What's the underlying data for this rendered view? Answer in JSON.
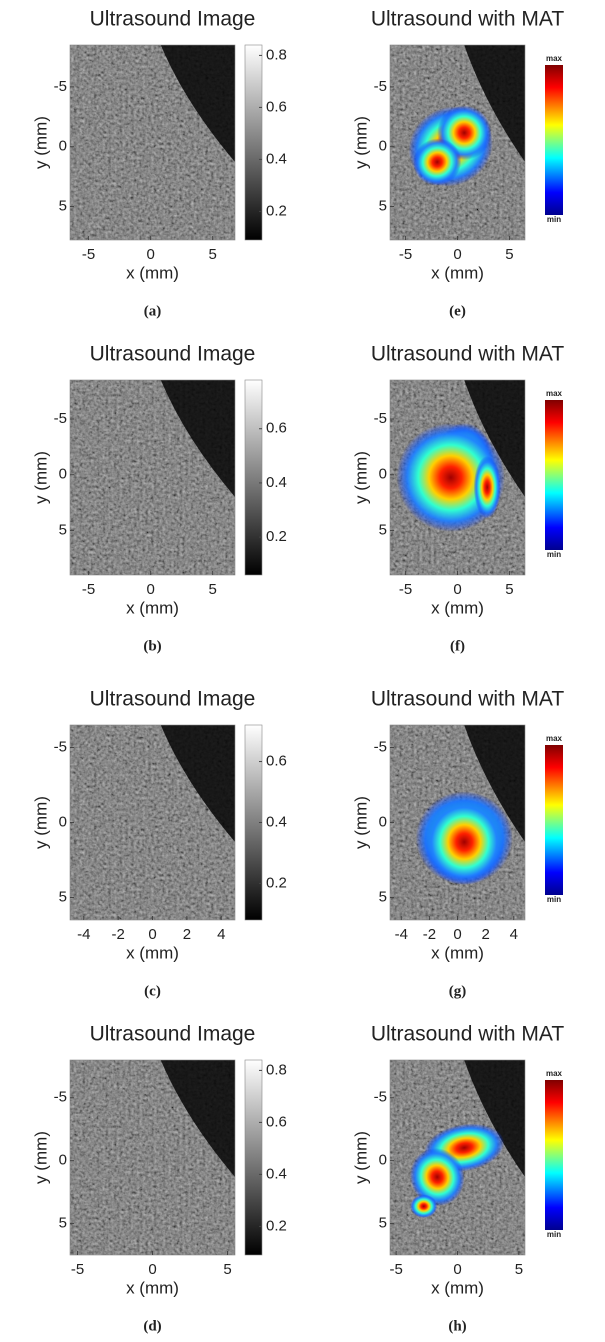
{
  "panels": [
    {
      "title": "Ultrasound Image",
      "xlabel": "x (mm)",
      "ylabel": "y (mm)",
      "xlim": [
        -6.5,
        6.8
      ],
      "ylim": [
        -8.5,
        7.8
      ],
      "xticks": [
        -5,
        0,
        5
      ],
      "yticks": [
        -5,
        0,
        5
      ],
      "clim": [
        0.09,
        0.84
      ],
      "colorbar_ticks": [
        0.8,
        0.6,
        0.4,
        0.2
      ],
      "caption": "(a)"
    },
    {
      "title": "Ultrasound Image",
      "xlabel": "x (mm)",
      "ylabel": "y (mm)",
      "xlim": [
        -6.5,
        6.8
      ],
      "ylim": [
        -8.5,
        9
      ],
      "xticks": [
        -5,
        0,
        5
      ],
      "yticks": [
        -5,
        0,
        5
      ],
      "clim": [
        0.06,
        0.78
      ],
      "colorbar_ticks": [
        0.6,
        0.4,
        0.2
      ],
      "caption": "(b)"
    },
    {
      "title": "Ultrasound Image",
      "xlabel": "x (mm)",
      "ylabel": "y (mm)",
      "xlim": [
        -4.8,
        4.8
      ],
      "ylim": [
        -6.5,
        6.5
      ],
      "xticks": [
        -4,
        -2,
        0,
        2,
        4
      ],
      "yticks": [
        -5,
        0,
        5
      ],
      "clim": [
        0.08,
        0.72
      ],
      "colorbar_ticks": [
        0.6,
        0.4,
        0.2
      ],
      "caption": "(c)"
    },
    {
      "title": "Ultrasound Image",
      "xlabel": "x (mm)",
      "ylabel": "y (mm)",
      "xlim": [
        -5.5,
        5.5
      ],
      "ylim": [
        -8,
        7.5
      ],
      "xticks": [
        -5,
        0,
        5
      ],
      "yticks": [
        -5,
        0,
        5
      ],
      "clim": [
        0.09,
        0.84
      ],
      "colorbar_ticks": [
        0.8,
        0.6,
        0.4,
        0.2
      ],
      "caption": "(d)"
    },
    {
      "title": "Ultrasound with MAT",
      "xlabel": "x (mm)",
      "ylabel": "y (mm)",
      "xlim": [
        -6.5,
        6.5
      ],
      "ylim": [
        -8.5,
        7.8
      ],
      "xticks": [
        -5,
        0,
        5
      ],
      "yticks": [
        -5,
        0,
        5
      ],
      "colorbar_labels": [
        "max",
        "min"
      ],
      "caption": "(e)"
    },
    {
      "title": "Ultrasound with MAT",
      "xlabel": "x (mm)",
      "ylabel": "y (mm)",
      "xlim": [
        -6.5,
        6.5
      ],
      "ylim": [
        -8.5,
        9
      ],
      "xticks": [
        -5,
        0,
        5
      ],
      "yticks": [
        -5,
        0,
        5
      ],
      "colorbar_labels": [
        "max",
        "min"
      ],
      "caption": "(f)"
    },
    {
      "title": "Ultrasound with MAT",
      "xlabel": "x (mm)",
      "ylabel": "y (mm)",
      "xlim": [
        -4.8,
        4.8
      ],
      "ylim": [
        -6.5,
        6.5
      ],
      "xticks": [
        -4,
        -2,
        0,
        2,
        4
      ],
      "yticks": [
        -5,
        0,
        5
      ],
      "colorbar_labels": [
        "max",
        "min"
      ],
      "caption": "(g)"
    },
    {
      "title": "Ultrasound with MAT",
      "xlabel": "x (mm)",
      "ylabel": "y (mm)",
      "xlim": [
        -5.5,
        5.5
      ],
      "ylim": [
        -8,
        7.5
      ],
      "xticks": [
        -5,
        0,
        5
      ],
      "yticks": [
        -5,
        0,
        5
      ],
      "colorbar_labels": [
        "max",
        "min"
      ],
      "caption": "(h)"
    }
  ]
}
